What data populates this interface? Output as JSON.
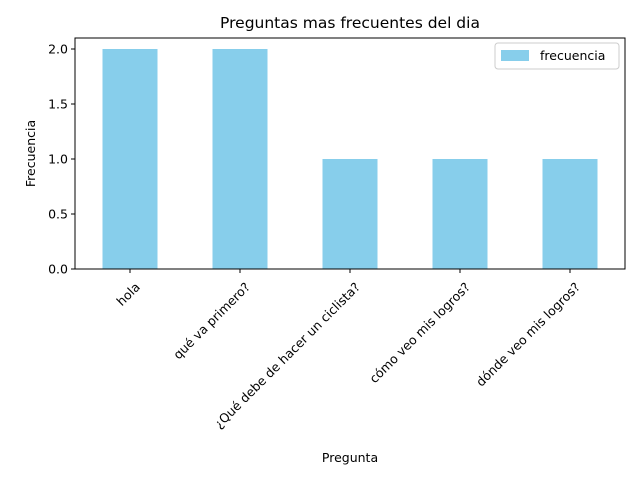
{
  "chart_data": {
    "type": "bar",
    "title": "Preguntas mas frecuentes del dia",
    "xlabel": "Pregunta",
    "ylabel": "Frecuencia",
    "categories": [
      "hola",
      "qué va primero?",
      "¿Qué debe de hacer un ciclista?",
      "cómo veo mis logros?",
      "dónde veo mis logros?"
    ],
    "series": [
      {
        "name": "frecuencia",
        "values": [
          2,
          2,
          1,
          1,
          1
        ],
        "color": "#87ceeb"
      }
    ],
    "ylim": [
      0,
      2.1
    ],
    "yticks": [
      0.0,
      0.5,
      1.0,
      1.5,
      2.0
    ],
    "ytick_labels": [
      "0.0",
      "0.5",
      "1.0",
      "1.5",
      "2.0"
    ],
    "legend": {
      "location": "top-right",
      "entries": [
        "frecuencia"
      ]
    },
    "grid": false
  }
}
